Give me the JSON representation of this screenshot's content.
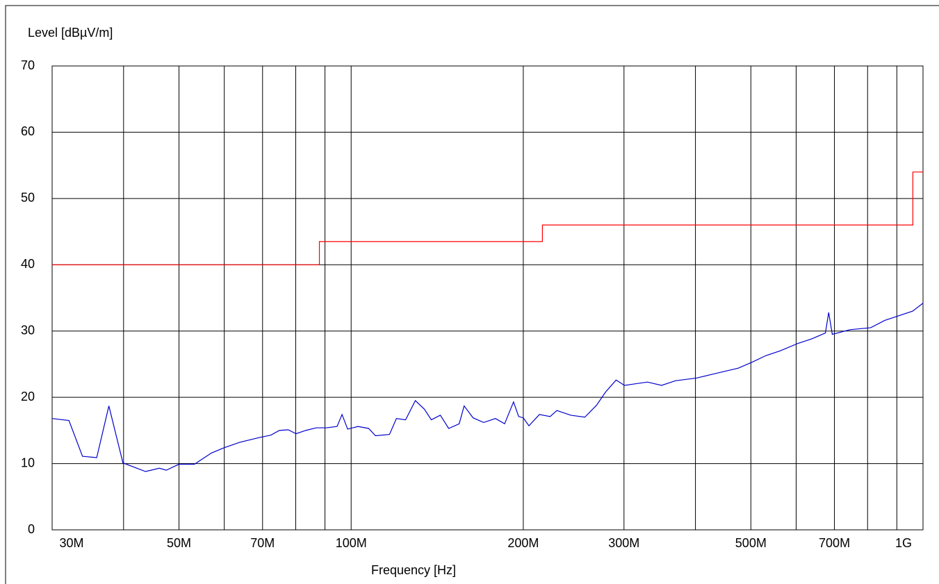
{
  "chart_data": {
    "type": "line",
    "xlabel": "Frequency [Hz]",
    "ylabel": "Level [dBµV/m]",
    "xscale": "log",
    "grid": true,
    "xlim": [
      30000000,
      1000000000
    ],
    "ylim": [
      0,
      70
    ],
    "yticks": [
      0,
      10,
      20,
      30,
      40,
      50,
      60,
      70
    ],
    "xticks": [
      {
        "value": 30000000,
        "label": "30M"
      },
      {
        "value": 40000000,
        "label": null
      },
      {
        "value": 50000000,
        "label": "50M"
      },
      {
        "value": 60000000,
        "label": null
      },
      {
        "value": 70000000,
        "label": "70M"
      },
      {
        "value": 80000000,
        "label": null
      },
      {
        "value": 90000000,
        "label": null
      },
      {
        "value": 100000000,
        "label": "100M"
      },
      {
        "value": 200000000,
        "label": "200M"
      },
      {
        "value": 300000000,
        "label": "300M"
      },
      {
        "value": 400000000,
        "label": null
      },
      {
        "value": 500000000,
        "label": "500M"
      },
      {
        "value": 600000000,
        "label": null
      },
      {
        "value": 700000000,
        "label": "700M"
      },
      {
        "value": 800000000,
        "label": null
      },
      {
        "value": 900000000,
        "label": null
      },
      {
        "value": 1000000000,
        "label": "1G"
      }
    ],
    "series": [
      {
        "color": "#ff0000",
        "x": [
          30000000,
          88000000,
          88000000,
          216000000,
          216000000,
          960000000,
          960000000,
          1000000000
        ],
        "values": [
          40,
          40,
          43.5,
          43.5,
          46,
          46,
          54,
          54
        ]
      },
      {
        "color": "#0000cc",
        "x": [
          30000000,
          32100000,
          33900000,
          35900000,
          37700000,
          39900000,
          43700000,
          46200000,
          47500000,
          50000000,
          53200000,
          57000000,
          60000000,
          63800000,
          68900000,
          72400000,
          74900000,
          77600000,
          80100000,
          83300000,
          86900000,
          90600000,
          94500000,
          96400000,
          98600000,
          102800000,
          107300000,
          110300000,
          116700000,
          120000000,
          124500000,
          129500000,
          134300000,
          138100000,
          143200000,
          148100000,
          154500000,
          157600000,
          163400000,
          170500000,
          178800000,
          185500000,
          192300000,
          196300000,
          200000000,
          204600000,
          213400000,
          222800000,
          229000000,
          242100000,
          256200000,
          268600000,
          278600000,
          290600000,
          300600000,
          311900000,
          329800000,
          349000000,
          369000000,
          401500000,
          424600000,
          449000000,
          475200000,
          502500000,
          531500000,
          562300000,
          603000000,
          638000000,
          675000000,
          684000000,
          694000000,
          745000000,
          810000000,
          857000000,
          906000000,
          959000000,
          1000000000
        ],
        "values": [
          16.8,
          16.5,
          11.1,
          10.9,
          18.7,
          10.1,
          8.8,
          9.3,
          9.0,
          9.9,
          9.9,
          11.6,
          12.4,
          13.2,
          13.9,
          14.3,
          15.0,
          15.1,
          14.5,
          15.0,
          15.4,
          15.4,
          15.6,
          17.4,
          15.2,
          15.6,
          15.3,
          14.2,
          14.4,
          16.8,
          16.6,
          19.5,
          18.2,
          16.6,
          17.3,
          15.3,
          16.0,
          18.7,
          16.9,
          16.2,
          16.8,
          16.0,
          19.3,
          17.1,
          16.9,
          15.7,
          17.4,
          17.1,
          18.0,
          17.3,
          17.0,
          18.8,
          20.8,
          22.6,
          21.8,
          22.0,
          22.3,
          21.8,
          22.5,
          22.9,
          23.4,
          23.9,
          24.4,
          25.3,
          26.3,
          27.0,
          28.1,
          28.8,
          29.7,
          32.8,
          29.5,
          30.2,
          30.5,
          31.6,
          32.3,
          33.0,
          34.2
        ]
      }
    ]
  }
}
